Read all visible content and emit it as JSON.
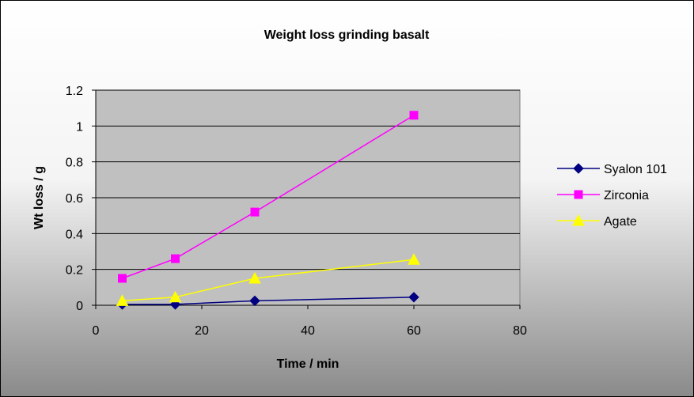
{
  "chart_data": {
    "type": "scatter",
    "title": "Weight loss grinding basalt",
    "xlabel": "Time / min",
    "ylabel": "Wt loss / g",
    "xlim": [
      0,
      80
    ],
    "ylim": [
      0,
      1.2
    ],
    "xticks": [
      0,
      20,
      40,
      60,
      80
    ],
    "yticks": [
      0,
      0.2,
      0.4,
      0.6,
      0.8,
      1,
      1.2
    ],
    "xtick_labels": [
      "0",
      "20",
      "40",
      "60",
      "80"
    ],
    "ytick_labels": [
      "0",
      "0.2",
      "0.4",
      "0.6",
      "0.8",
      "1",
      "1.2"
    ],
    "grid": "horizontal",
    "legend_position": "right",
    "series": [
      {
        "name": "Syalon 101",
        "color": "#000080",
        "marker": "diamond",
        "x": [
          5,
          15,
          30,
          60
        ],
        "y": [
          0.005,
          0.005,
          0.025,
          0.045
        ]
      },
      {
        "name": "Zirconia",
        "color": "#FF00FF",
        "marker": "square",
        "x": [
          5,
          15,
          30,
          60
        ],
        "y": [
          0.15,
          0.26,
          0.52,
          1.06
        ]
      },
      {
        "name": "Agate",
        "color": "#FFFF00",
        "marker": "triangle",
        "x": [
          5,
          15,
          30,
          60
        ],
        "y": [
          0.025,
          0.045,
          0.15,
          0.255
        ]
      }
    ]
  },
  "colors": {
    "plot_background": "#C0C0C0",
    "gridline": "#000000",
    "frame_border": "#000000"
  }
}
